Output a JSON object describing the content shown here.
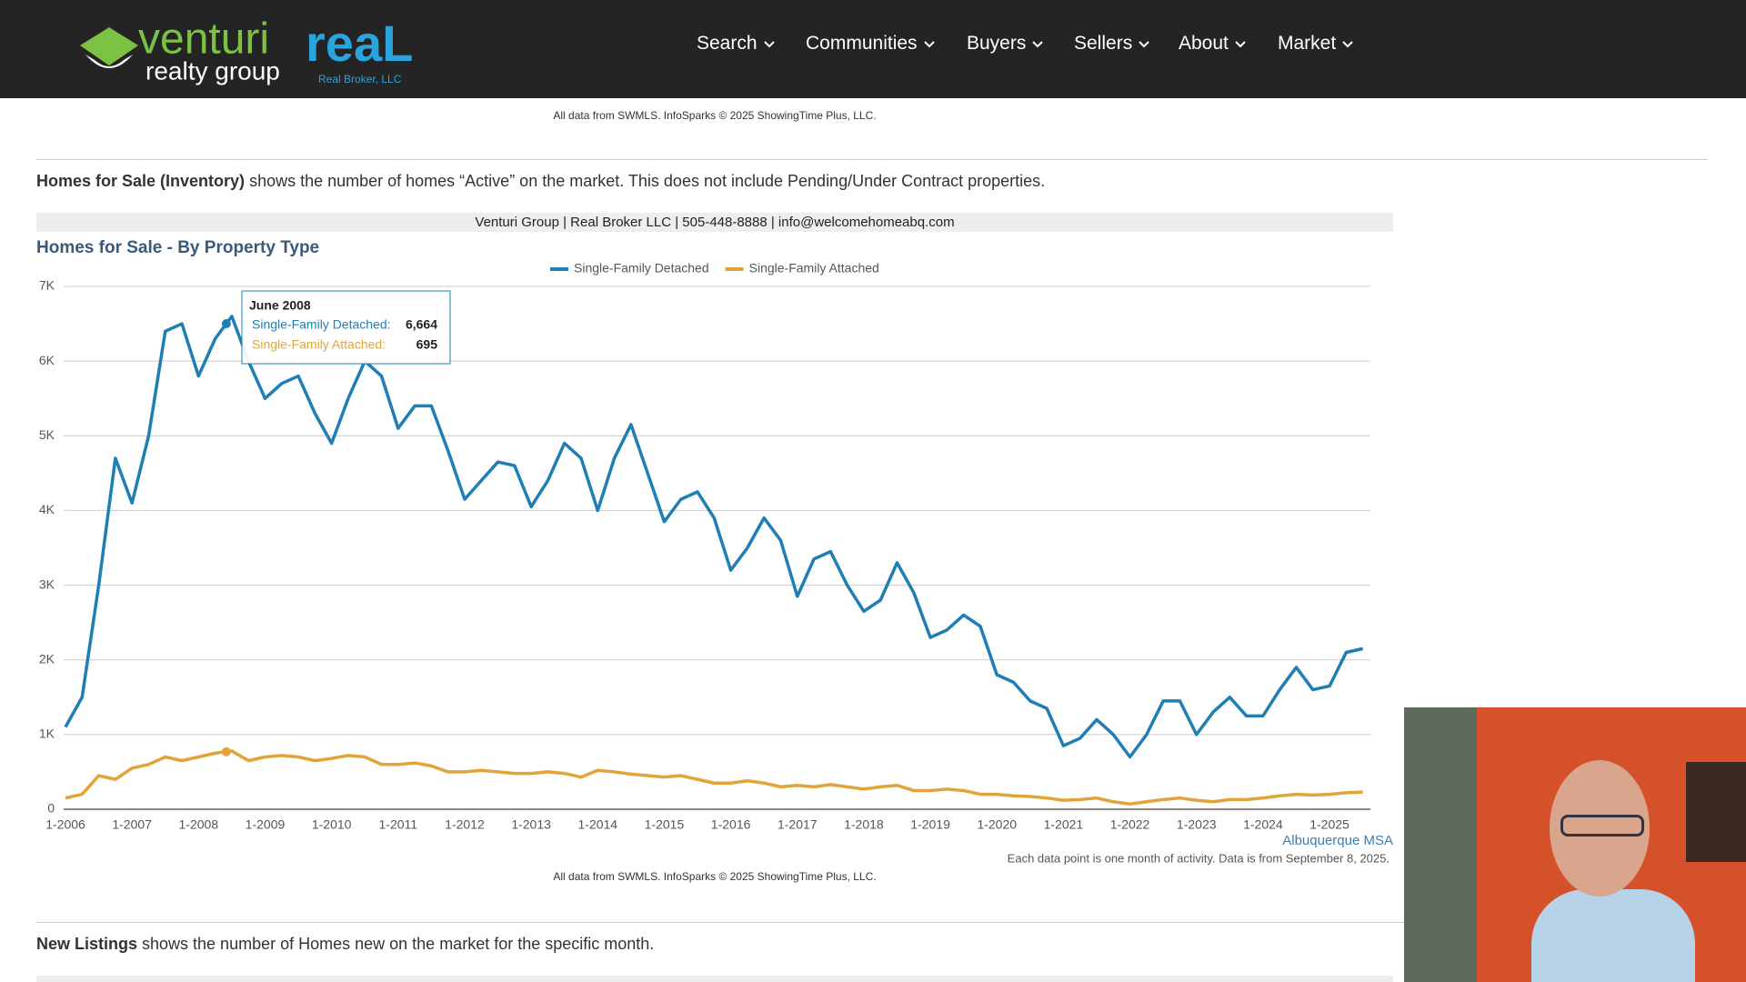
{
  "logo": {
    "brand": "venturi",
    "sub": "realty group",
    "partner": "reaL",
    "partner_sub": "Real Broker, LLC"
  },
  "nav": [
    "Search",
    "Communities",
    "Buyers",
    "Sellers",
    "About",
    "Market"
  ],
  "top_source": "All data from SWMLS. InfoSparks © 2025 ShowingTime Plus, LLC.",
  "intro": {
    "bold": "Homes for Sale (Inventory)",
    "text": " shows the number of homes “Active” on the market. This does not include Pending/Under Contract properties."
  },
  "contact_bar": "Venturi Group | Real Broker LLC | 505-448-8888 | info@welcomehomeabq.com",
  "chart_data": {
    "type": "line",
    "title": "Homes for Sale - By Property Type",
    "categories": [
      "1-2006",
      null,
      null,
      null,
      "1-2007",
      null,
      null,
      null,
      "1-2008",
      null,
      null,
      null,
      "1-2009",
      null,
      null,
      null,
      "1-2010",
      null,
      null,
      null,
      "1-2011",
      null,
      null,
      null,
      "1-2012",
      null,
      null,
      null,
      "1-2013",
      null,
      null,
      null,
      "1-2014",
      null,
      null,
      null,
      "1-2015",
      null,
      null,
      null,
      "1-2016",
      null,
      null,
      null,
      "1-2017",
      null,
      null,
      null,
      "1-2018",
      null,
      null,
      null,
      "1-2019",
      null,
      null,
      null,
      "1-2020",
      null,
      null,
      null,
      "1-2021",
      null,
      null,
      null,
      "1-2022",
      null,
      null,
      null,
      "1-2023",
      null,
      null,
      null,
      "1-2024",
      null,
      null,
      null,
      "1-2025",
      null,
      null
    ],
    "series": [
      {
        "name": "Single-Family Detached",
        "color": "#1f7fb4",
        "values": [
          1100,
          1500,
          3000,
          4700,
          4100,
          5000,
          6400,
          6500,
          5800,
          6300,
          6600,
          6000,
          5500,
          5700,
          5800,
          5300,
          4900,
          5500,
          6000,
          5800,
          5100,
          5400,
          5400,
          4800,
          4150,
          4400,
          4650,
          4600,
          4050,
          4400,
          4900,
          4700,
          4000,
          4700,
          5150,
          4500,
          3850,
          4150,
          4250,
          3900,
          3200,
          3500,
          3900,
          3600,
          2850,
          3350,
          3450,
          3000,
          2650,
          2800,
          3300,
          2900,
          2300,
          2400,
          2600,
          2450,
          1800,
          1700,
          1450,
          1350,
          850,
          950,
          1200,
          1000,
          700,
          1000,
          1450,
          1450,
          1000,
          1300,
          1500,
          1250,
          1250,
          1600,
          1900,
          1600,
          1650,
          2100,
          2150
        ]
      },
      {
        "name": "Single-Family Attached",
        "color": "#e0a43a",
        "values": [
          150,
          200,
          450,
          400,
          550,
          600,
          700,
          650,
          700,
          750,
          780,
          650,
          700,
          720,
          700,
          650,
          680,
          720,
          700,
          600,
          600,
          620,
          580,
          500,
          500,
          520,
          500,
          480,
          480,
          500,
          480,
          430,
          520,
          500,
          470,
          450,
          430,
          450,
          400,
          350,
          350,
          380,
          350,
          300,
          320,
          300,
          330,
          300,
          270,
          300,
          320,
          250,
          250,
          270,
          250,
          200,
          200,
          180,
          170,
          150,
          120,
          130,
          150,
          100,
          70,
          100,
          130,
          150,
          120,
          100,
          130,
          130,
          150,
          180,
          200,
          190,
          200,
          220,
          230
        ]
      }
    ],
    "ylim": [
      0,
      7000
    ],
    "yticks": [
      0,
      {
        "value": 1000,
        "label": "1K"
      },
      {
        "value": 2000,
        "label": "2K"
      },
      {
        "value": 3000,
        "label": "3K"
      },
      {
        "value": 4000,
        "label": "4K"
      },
      {
        "value": 5000,
        "label": "5K"
      },
      {
        "value": 6000,
        "label": "6K"
      },
      {
        "value": 7000,
        "label": "7K"
      }
    ],
    "grid": true,
    "tooltip": {
      "title": "June 2008",
      "rows": [
        {
          "label": "Single-Family Detached:",
          "value": "6,664"
        },
        {
          "label": "Single-Family Attached:",
          "value": "695"
        }
      ]
    },
    "region": "Albuquerque MSA",
    "note": "Each data point is one month of activity. Data is from September 8, 2025.",
    "source": "All data from SWMLS. InfoSparks © 2025 ShowingTime Plus, LLC."
  },
  "next": {
    "bold": "New Listings",
    "text": " shows the number of Homes new on the market for the specific month."
  }
}
